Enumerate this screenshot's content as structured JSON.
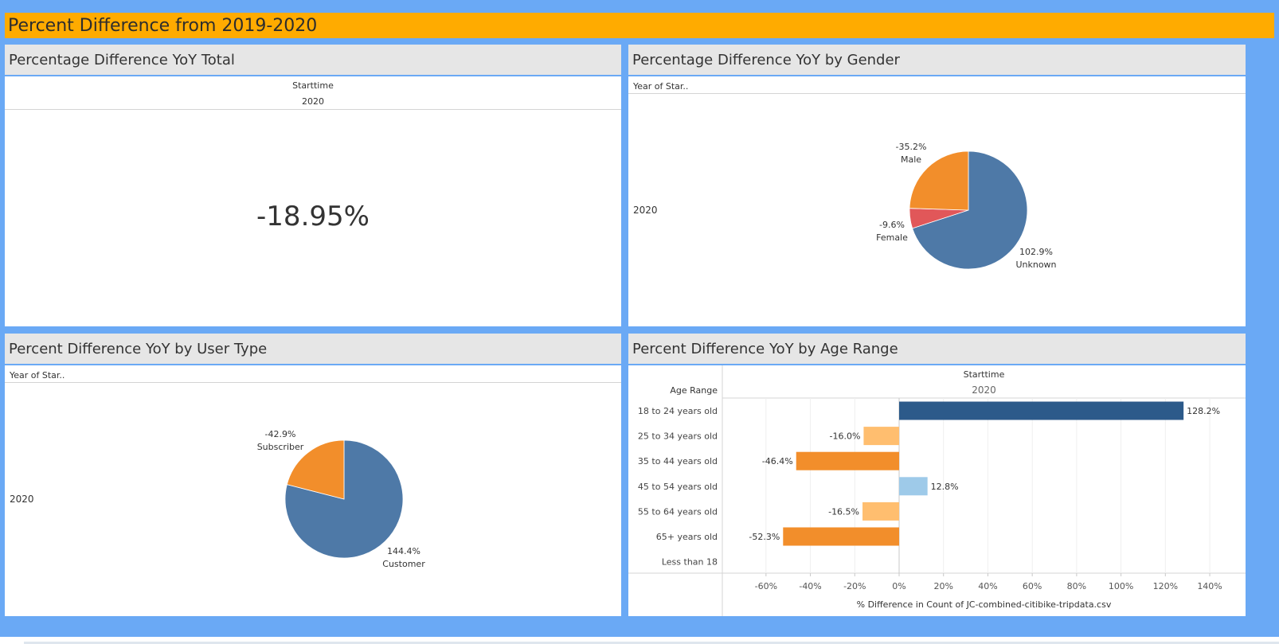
{
  "dashboard_title": "Percent Difference from 2019-2020",
  "panels": {
    "total": {
      "title": "Percentage Difference YoY Total",
      "column_header": "Starttime",
      "column_value": "2020",
      "big_value": "-18.95%"
    },
    "gender": {
      "title": "Percentage Difference YoY by Gender",
      "row_header": "Year of Star..",
      "row_value": "2020"
    },
    "usertype": {
      "title": "Percent Difference YoY by User Type",
      "row_header": "Year of Star..",
      "row_value": "2020"
    },
    "age": {
      "title": "Percent Difference YoY by Age Range",
      "row_header": "Age Range",
      "column_header": "Starttime",
      "column_value": "2020",
      "xlabel": "% Difference in Count of JC-combined-citibike-tripdata.csv"
    }
  },
  "chart_data": [
    {
      "type": "pie",
      "panel": "gender",
      "slices": [
        {
          "label": "Unknown",
          "value_label": "102.9%",
          "share": 0.7,
          "color": "#4e79a7"
        },
        {
          "label": "Female",
          "value_label": "-9.6%",
          "share": 0.055,
          "color": "#e15759"
        },
        {
          "label": "Male",
          "value_label": "-35.2%",
          "share": 0.245,
          "color": "#f28e2b"
        }
      ]
    },
    {
      "type": "pie",
      "panel": "usertype",
      "slices": [
        {
          "label": "Customer",
          "value_label": "144.4%",
          "share": 0.79,
          "color": "#4e79a7"
        },
        {
          "label": "Subscriber",
          "value_label": "-42.9%",
          "share": 0.21,
          "color": "#f28e2b"
        }
      ]
    },
    {
      "type": "bar",
      "panel": "age",
      "orientation": "horizontal",
      "categories": [
        "18 to 24 years old",
        "25 to 34 years old",
        "35 to 44 years old",
        "45 to 54 years old",
        "55 to 64 years old",
        "65+ years old",
        "Less than 18"
      ],
      "values": [
        128.2,
        -16.0,
        -46.4,
        12.8,
        -16.5,
        -52.3,
        null
      ],
      "value_labels": [
        "128.2%",
        "-16.0%",
        "-46.4%",
        "12.8%",
        "-16.5%",
        "-52.3%",
        ""
      ],
      "colors": [
        "#2c5a8a",
        "#ffbe6f",
        "#f28e2b",
        "#9ecae9",
        "#ffbe6f",
        "#f28e2b",
        "#cccccc"
      ],
      "xlim": [
        -70,
        143
      ],
      "ticks": [
        -60,
        -40,
        -20,
        0,
        20,
        40,
        60,
        80,
        100,
        120,
        140
      ],
      "tick_labels": [
        "-60%",
        "-40%",
        "-20%",
        "0%",
        "20%",
        "40%",
        "60%",
        "80%",
        "100%",
        "120%",
        "140%"
      ],
      "grid": true
    }
  ]
}
